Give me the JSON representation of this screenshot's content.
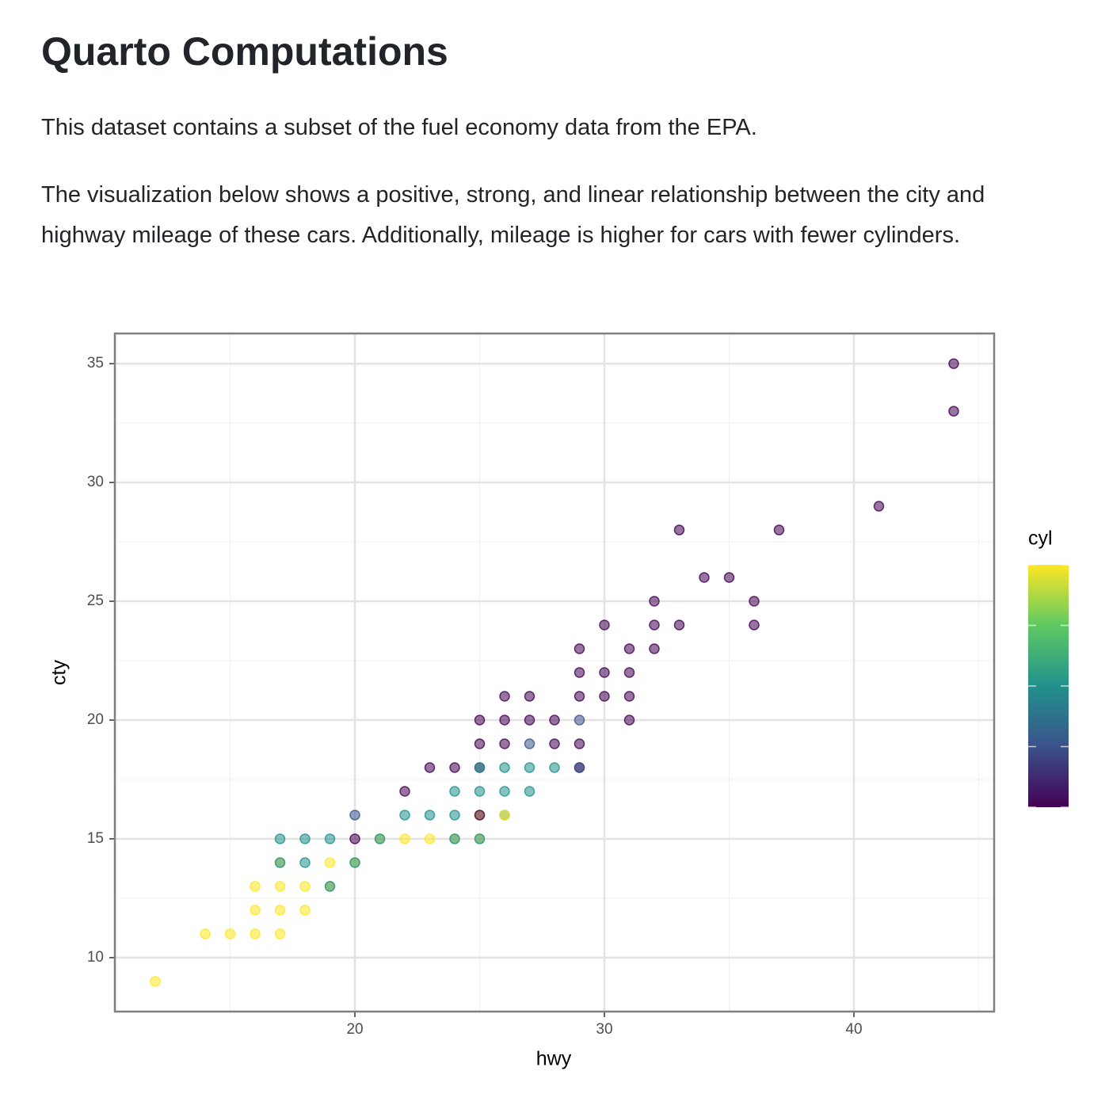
{
  "header": {
    "title": "Quarto Computations"
  },
  "paragraphs": [
    "This dataset contains a subset of the fuel economy data from the EPA.",
    "The visualization below shows a positive, strong, and linear relationship between the city and highway mileage of these cars. Additionally, mileage is higher for cars with fewer cylinders."
  ],
  "chart_data": {
    "type": "scatter",
    "x_label": "hwy",
    "y_label": "cty",
    "legend_title": "cyl",
    "x": [
      12,
      14,
      15,
      16,
      17,
      16,
      17,
      18,
      16,
      17,
      18,
      19,
      19,
      17,
      17,
      18,
      19,
      20,
      20,
      17,
      18,
      19,
      20,
      21,
      21,
      22,
      23,
      24,
      24,
      25,
      25,
      20,
      22,
      23,
      24,
      25,
      25,
      26,
      26,
      22,
      24,
      25,
      26,
      27,
      23,
      24,
      25,
      25,
      26,
      27,
      28,
      29,
      29,
      25,
      26,
      27,
      28,
      29,
      25,
      26,
      27,
      28,
      29,
      31,
      26,
      27,
      29,
      30,
      31,
      29,
      30,
      31,
      29,
      31,
      32,
      30,
      32,
      33,
      36,
      32,
      36,
      34,
      35,
      33,
      37,
      41,
      44,
      44
    ],
    "values": [
      9,
      11,
      11,
      11,
      11,
      12,
      12,
      12,
      13,
      13,
      13,
      13,
      13,
      14,
      14,
      14,
      14,
      14,
      14,
      15,
      15,
      15,
      15,
      15,
      15,
      15,
      15,
      15,
      15,
      15,
      15,
      16,
      16,
      16,
      16,
      16,
      16,
      16,
      16,
      17,
      17,
      17,
      17,
      17,
      18,
      18,
      18,
      18,
      18,
      18,
      18,
      18,
      18,
      19,
      19,
      19,
      19,
      19,
      20,
      20,
      20,
      20,
      20,
      20,
      21,
      21,
      21,
      21,
      21,
      22,
      22,
      22,
      23,
      23,
      23,
      24,
      24,
      24,
      24,
      25,
      25,
      26,
      26,
      28,
      28,
      29,
      33,
      35
    ],
    "cyl": [
      8,
      8,
      8,
      8,
      8,
      8,
      8,
      8,
      8,
      8,
      8,
      8,
      6,
      8,
      6,
      6,
      8,
      8,
      6,
      6,
      6,
      6,
      4,
      8,
      6,
      8,
      8,
      8,
      6,
      8,
      6,
      5,
      6,
      6,
      6,
      8,
      4,
      6,
      8,
      4,
      6,
      6,
      6,
      6,
      4,
      4,
      4,
      6,
      6,
      6,
      6,
      4,
      5,
      4,
      4,
      5,
      4,
      4,
      4,
      4,
      4,
      4,
      5,
      4,
      4,
      4,
      4,
      4,
      4,
      4,
      4,
      4,
      4,
      4,
      4,
      4,
      4,
      4,
      4,
      4,
      4,
      4,
      4,
      4,
      4,
      4,
      4,
      4
    ],
    "clim": [
      4,
      8
    ],
    "cticks": [
      4,
      5,
      6,
      7,
      8
    ],
    "colormap": [
      "#440154",
      "#3b528b",
      "#21918c",
      "#5ec962",
      "#fde725"
    ],
    "opacity": 0.55,
    "xlim": [
      10.38,
      45.62
    ],
    "ylim": [
      7.73,
      36.27
    ],
    "xticks": [
      20,
      30,
      40
    ],
    "yticks": [
      10,
      15,
      20,
      25,
      30,
      35
    ],
    "xminorticks": [
      15,
      25,
      35,
      45
    ],
    "yminorticks": [
      12.5,
      17.5,
      22.5,
      27.5,
      32.5
    ],
    "grid": true
  }
}
